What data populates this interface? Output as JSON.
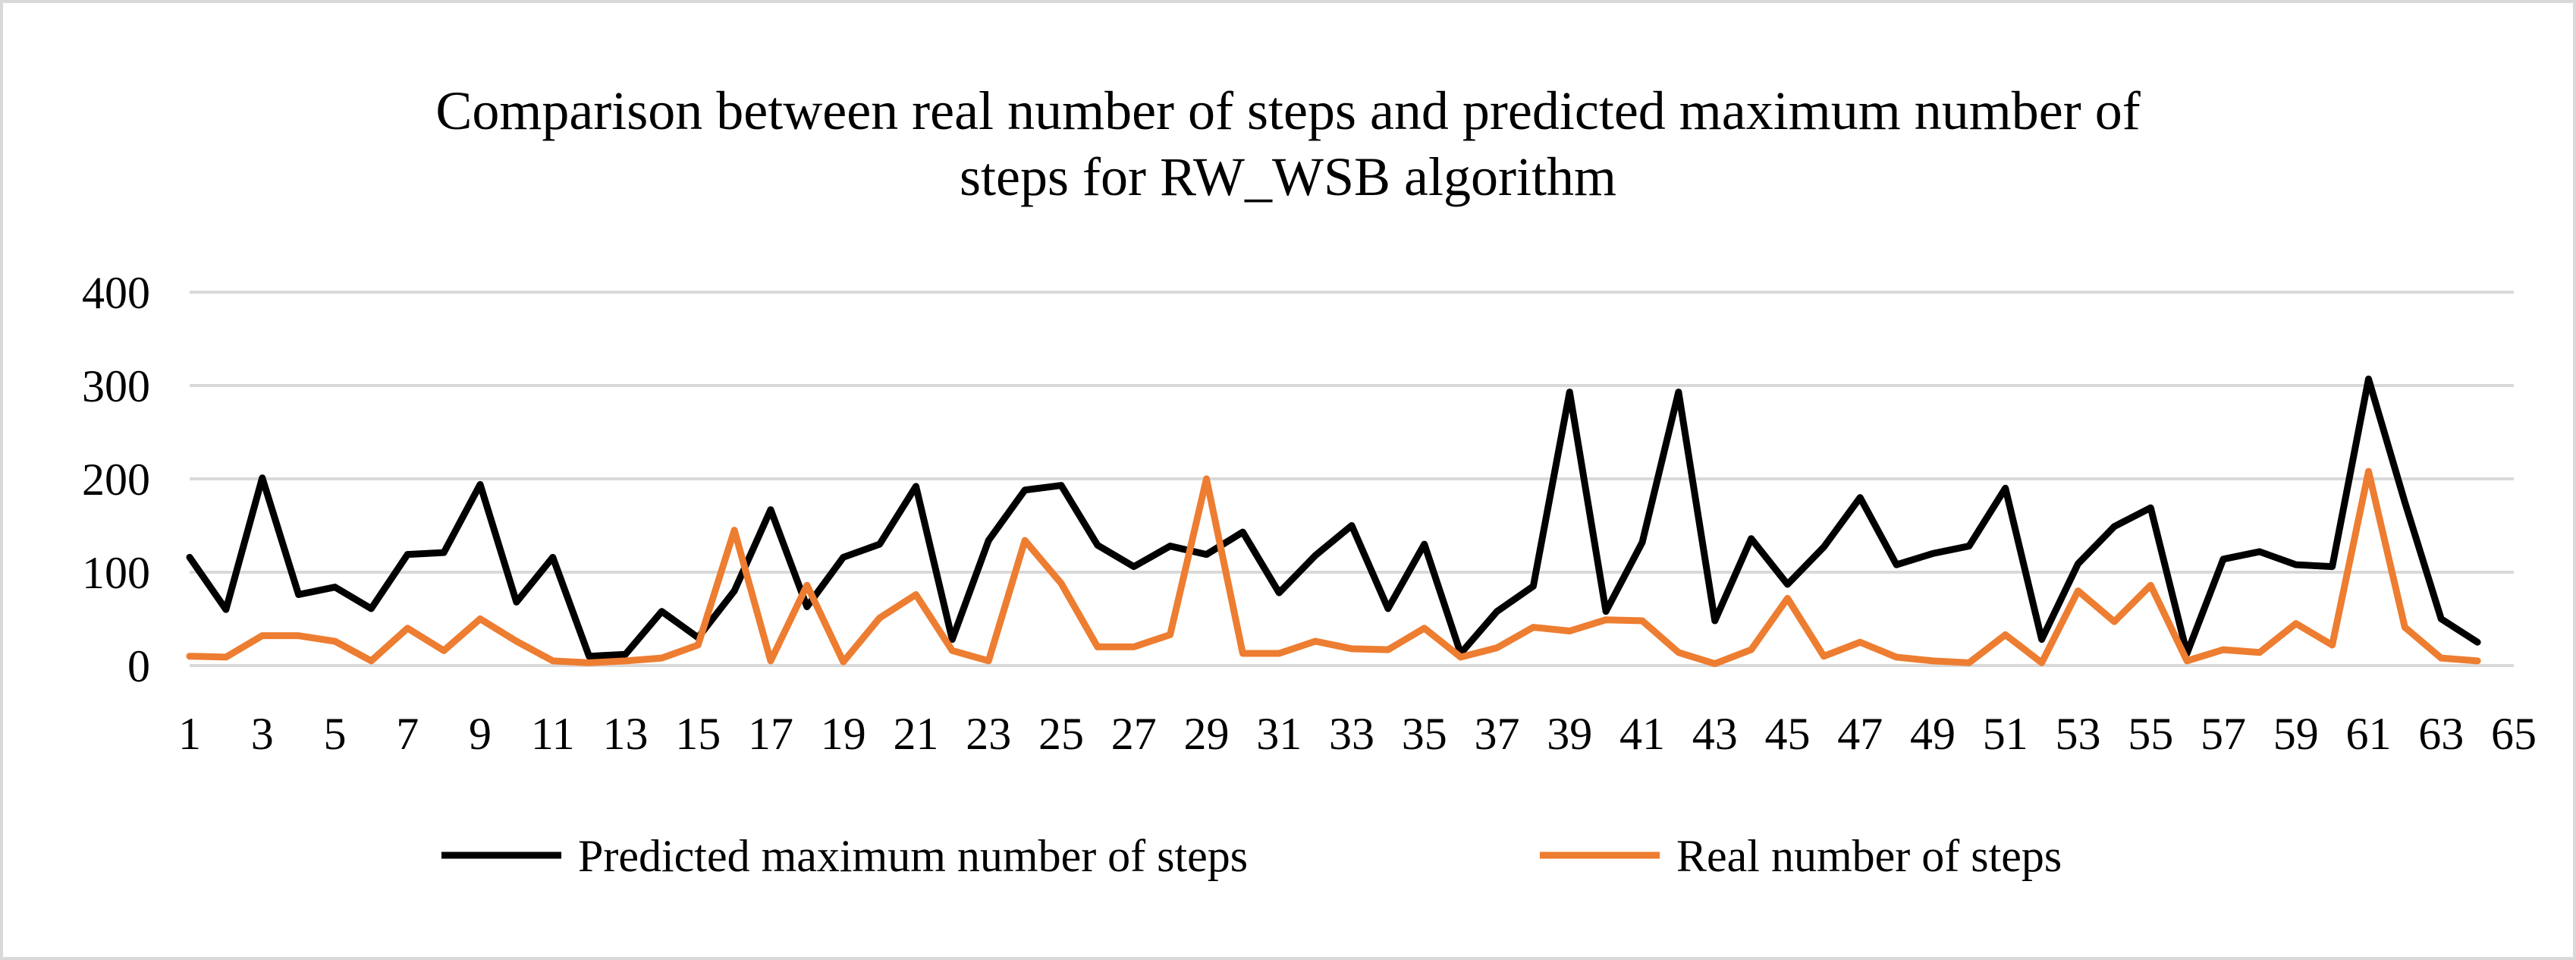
{
  "chart_data": {
    "type": "line",
    "title_lines": [
      "Comparison between real number of steps and predicted maximum number of",
      "steps for RW_WSB algorithm"
    ],
    "xlabel": "",
    "ylabel": "",
    "x_tick_labels": [
      "1",
      "3",
      "5",
      "7",
      "9",
      "11",
      "13",
      "15",
      "17",
      "19",
      "21",
      "23",
      "25",
      "27",
      "29",
      "31",
      "33",
      "35",
      "37",
      "39",
      "41",
      "43",
      "45",
      "47",
      "49",
      "51",
      "53",
      "55",
      "57",
      "59",
      "61",
      "63",
      "65"
    ],
    "y_tick_labels": [
      "0",
      "100",
      "200",
      "300",
      "400"
    ],
    "ylim": [
      0,
      400
    ],
    "xlim": [
      1,
      65
    ],
    "grid": true,
    "legend_position": "bottom",
    "x": [
      1,
      2,
      3,
      4,
      5,
      6,
      7,
      8,
      9,
      10,
      11,
      12,
      13,
      14,
      15,
      16,
      17,
      18,
      19,
      20,
      21,
      22,
      23,
      24,
      25,
      26,
      27,
      28,
      29,
      30,
      31,
      32,
      33,
      34,
      35,
      36,
      37,
      38,
      39,
      40,
      41,
      42,
      43,
      44,
      45,
      46,
      47,
      48,
      49,
      50,
      51,
      52,
      53,
      54,
      55,
      56,
      57,
      58,
      59,
      60,
      61,
      62,
      63,
      64
    ],
    "series": [
      {
        "name": "Predicted maximum number of steps",
        "color": "#000000",
        "values": [
          116,
          60,
          201,
          76,
          84,
          61,
          119,
          121,
          194,
          68,
          116,
          10,
          12,
          58,
          30,
          80,
          167,
          63,
          116,
          130,
          192,
          28,
          134,
          188,
          193,
          129,
          106,
          128,
          119,
          143,
          78,
          118,
          150,
          61,
          130,
          13,
          58,
          85,
          293,
          58,
          132,
          293,
          48,
          136,
          87,
          127,
          180,
          108,
          120,
          128,
          190,
          28,
          109,
          149,
          169,
          13,
          114,
          122,
          108,
          106,
          307,
          175,
          50,
          25
        ]
      },
      {
        "name": "Real number of steps",
        "color": "#ed7d31",
        "values": [
          10,
          9,
          32,
          32,
          26,
          5,
          40,
          16,
          50,
          26,
          5,
          3,
          5,
          8,
          22,
          145,
          5,
          86,
          4,
          51,
          76,
          16,
          5,
          134,
          88,
          20,
          20,
          33,
          200,
          13,
          13,
          26,
          18,
          17,
          40,
          9,
          19,
          41,
          37,
          49,
          48,
          14,
          2,
          17,
          72,
          10,
          25,
          9,
          5,
          3,
          33,
          3,
          80,
          47,
          86,
          5,
          17,
          14,
          45,
          22,
          208,
          41,
          8,
          5
        ]
      }
    ]
  },
  "icons": {
    "legend_line_predicted": "legend-line-black",
    "legend_line_real": "legend-line-orange"
  },
  "colors": {
    "grid": "#d9d9d9",
    "frame": "#d9d9d9"
  }
}
